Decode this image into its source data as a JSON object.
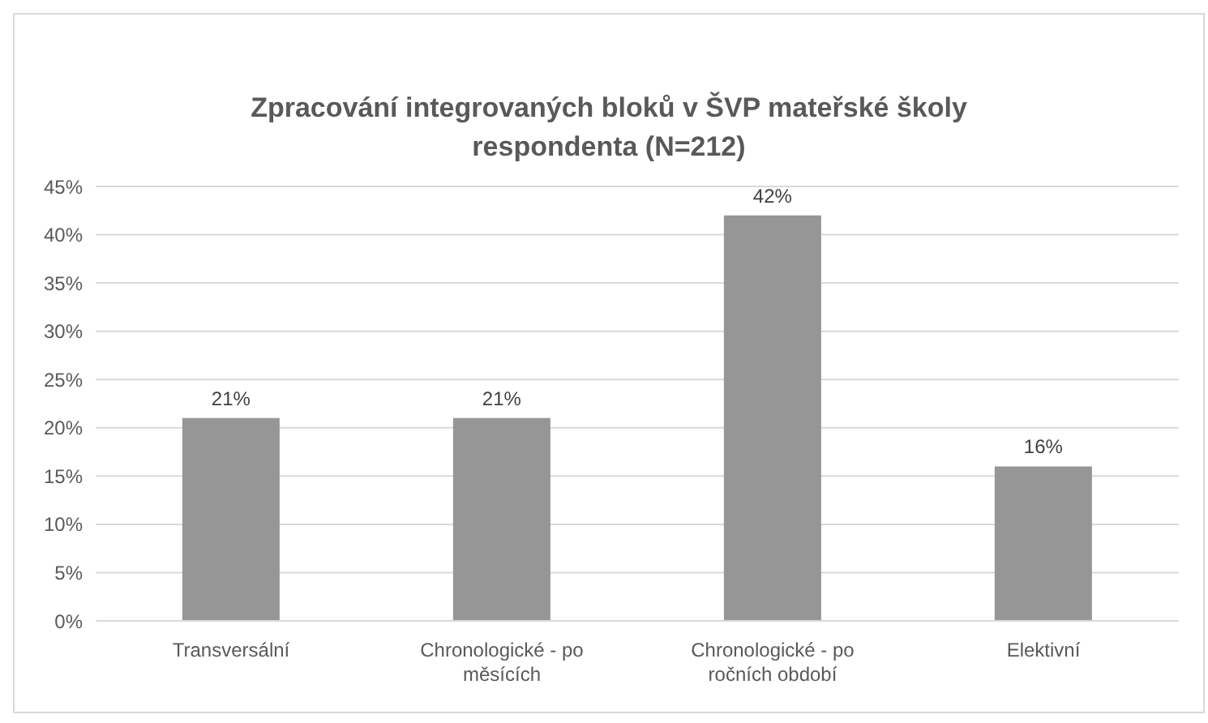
{
  "chart_data": {
    "type": "bar",
    "title": "Zpracování integrovaných bloků v ŠVP mateřské školy respondenta (N=212)",
    "categories": [
      "Transversální",
      "Chronologické - po měsících",
      "Chronologické - po ročních období",
      "Elektivní"
    ],
    "values": [
      21,
      21,
      42,
      16
    ],
    "value_labels": [
      "21%",
      "21%",
      "42%",
      "16%"
    ],
    "color": "#969696",
    "ylim": [
      0,
      45
    ],
    "yticks": [
      {
        "value": 0,
        "label": "0%"
      },
      {
        "value": 5,
        "label": "5%"
      },
      {
        "value": 10,
        "label": "10%"
      },
      {
        "value": 15,
        "label": "15%"
      },
      {
        "value": 20,
        "label": "20%"
      },
      {
        "value": 25,
        "label": "25%"
      },
      {
        "value": 30,
        "label": "30%"
      },
      {
        "value": 35,
        "label": "35%"
      },
      {
        "value": 40,
        "label": "40%"
      },
      {
        "value": 45,
        "label": "45%"
      }
    ],
    "grid": "y",
    "legend": false
  }
}
